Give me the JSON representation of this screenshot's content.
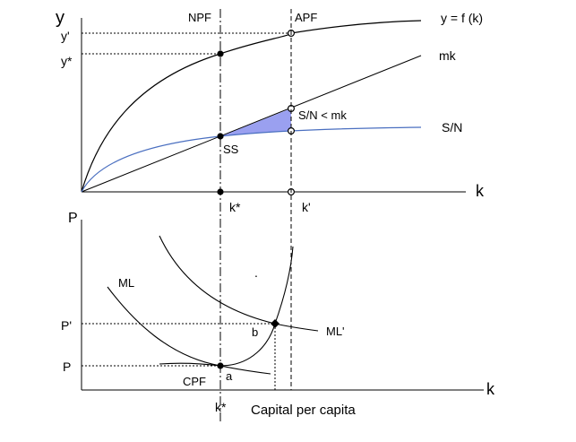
{
  "upper_panel": {
    "y_axis_label": "y",
    "x_axis_label": "k",
    "y_ticks": {
      "y_prime": "y'",
      "y_star": "y*"
    },
    "vline_labels": {
      "npf": "NPF",
      "apf": "APF"
    },
    "x_ticks": {
      "k_star": "k*",
      "k_prime": "k'"
    },
    "curves": {
      "production": "y = f (k)",
      "mk_line": "mk",
      "savings": "S/N"
    },
    "annotations": {
      "gap_label": "S/N < mk",
      "steady_state": "SS"
    },
    "colors": {
      "savings_curve": "#4a6fc0",
      "gap_fill": "#9aa0f0"
    }
  },
  "lower_panel": {
    "y_axis_label": "P",
    "x_axis_label": "k",
    "y_ticks": {
      "p_prime": "P'",
      "p": "P"
    },
    "curves": {
      "ml": "ML",
      "ml_prime": "ML'",
      "cpf": "CPF"
    },
    "points": {
      "a": "a",
      "b": "b"
    },
    "stray_mark": ".",
    "x_tick_k_star": "k*",
    "caption": "Capital per capita"
  }
}
